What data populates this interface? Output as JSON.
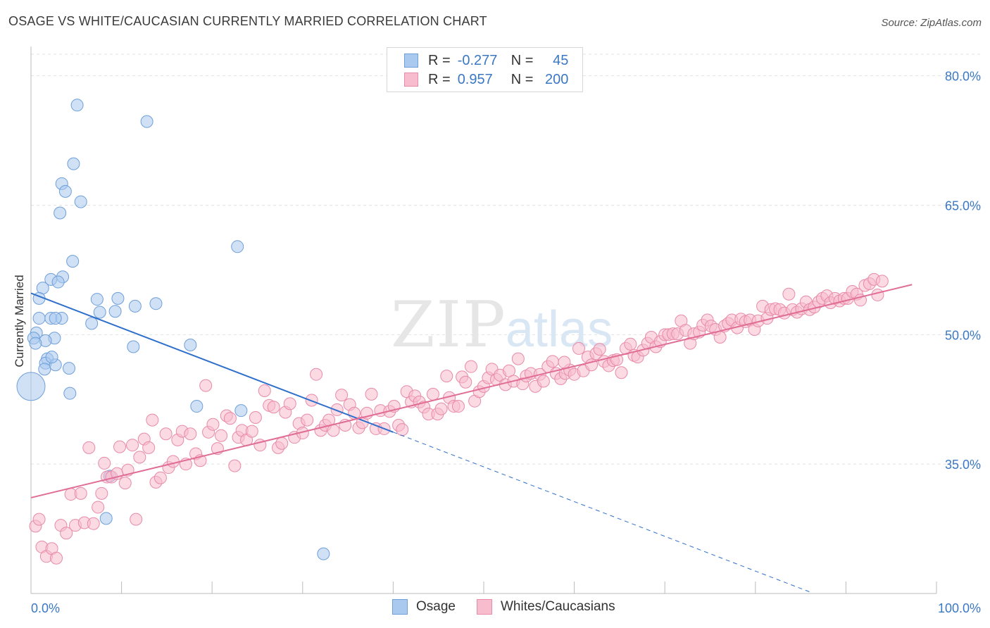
{
  "title": "OSAGE VS WHITE/CAUCASIAN CURRENTLY MARRIED CORRELATION CHART",
  "source": "Source: ZipAtlas.com",
  "watermark": {
    "zip": "ZIP",
    "atlas": "atlas"
  },
  "legend": {
    "rows": [
      {
        "r_label": "R =",
        "r_value": "-0.277",
        "n_label": "N =",
        "n_value": "45",
        "color": "#a9c9ef",
        "border": "#6e9fd8"
      },
      {
        "r_label": "R =",
        "r_value": "0.957",
        "n_label": "N =",
        "n_value": "200",
        "color": "#f7bccd",
        "border": "#e88aa8"
      }
    ]
  },
  "bottom_legend": [
    {
      "label": "Osage",
      "color": "#a9c9ef",
      "border": "#6e9fd8"
    },
    {
      "label": "Whites/Caucasians",
      "color": "#f7bccd",
      "border": "#e88aa8"
    }
  ],
  "chart_data": {
    "type": "scatter",
    "ylabel": "Currently Married",
    "xlim": [
      0,
      100
    ],
    "ylim": [
      20,
      82.5
    ],
    "x_tick_labels": [
      "0.0%",
      "100.0%"
    ],
    "y_ticks": [
      35,
      50,
      65,
      80
    ],
    "y_tick_labels": [
      "35.0%",
      "50.0%",
      "65.0%",
      "80.0%"
    ],
    "grid": true,
    "series": [
      {
        "name": "Osage",
        "color": "#a9c9ef",
        "stroke": "#6e9fd8",
        "trend": {
          "x0": 0,
          "y0": 54.8,
          "x1": 40.0,
          "y1": 38.7,
          "dash_to_x": 86,
          "color": "#2f6fcb"
        },
        "points": [
          [
            5.1,
            76.6
          ],
          [
            12.8,
            74.7
          ],
          [
            4.7,
            69.8
          ],
          [
            3.4,
            67.5
          ],
          [
            3.8,
            66.6
          ],
          [
            5.5,
            65.4
          ],
          [
            3.2,
            64.1
          ],
          [
            22.8,
            60.2
          ],
          [
            4.6,
            58.5
          ],
          [
            3.5,
            56.7
          ],
          [
            2.2,
            56.4
          ],
          [
            3.0,
            56.1
          ],
          [
            1.3,
            55.4
          ],
          [
            0.9,
            54.2
          ],
          [
            7.3,
            54.1
          ],
          [
            9.6,
            54.2
          ],
          [
            11.5,
            53.3
          ],
          [
            13.8,
            53.6
          ],
          [
            7.6,
            52.6
          ],
          [
            9.3,
            52.7
          ],
          [
            0.9,
            51.9
          ],
          [
            2.2,
            51.9
          ],
          [
            3.4,
            51.9
          ],
          [
            2.7,
            51.9
          ],
          [
            6.7,
            51.3
          ],
          [
            0.6,
            50.2
          ],
          [
            0.3,
            49.6
          ],
          [
            2.6,
            49.6
          ],
          [
            1.6,
            49.3
          ],
          [
            0.5,
            49.0
          ],
          [
            11.3,
            48.6
          ],
          [
            17.6,
            48.8
          ],
          [
            1.8,
            47.2
          ],
          [
            1.6,
            46.7
          ],
          [
            2.7,
            46.5
          ],
          [
            1.5,
            46.0
          ],
          [
            4.2,
            46.1
          ],
          [
            0.0,
            44.0
          ],
          [
            4.3,
            43.2
          ],
          [
            18.3,
            41.7
          ],
          [
            23.2,
            41.2
          ],
          [
            8.7,
            33.6
          ],
          [
            8.3,
            28.7
          ],
          [
            32.3,
            24.6
          ],
          [
            2.3,
            47.4
          ]
        ],
        "big_point_index": 37
      },
      {
        "name": "Whites/Caucasians",
        "color": "#f7bccd",
        "stroke": "#e88aa8",
        "trend": {
          "x0": 0,
          "y0": 31.1,
          "x1": 97.3,
          "y1": 55.8,
          "color": "#e06d96"
        },
        "points": [
          [
            0.5,
            27.8
          ],
          [
            0.9,
            28.6
          ],
          [
            1.2,
            25.4
          ],
          [
            1.7,
            24.3
          ],
          [
            2.3,
            25.2
          ],
          [
            2.8,
            24.1
          ],
          [
            3.3,
            27.9
          ],
          [
            3.9,
            27.0
          ],
          [
            4.4,
            31.5
          ],
          [
            4.9,
            27.9
          ],
          [
            5.5,
            31.6
          ],
          [
            5.9,
            28.2
          ],
          [
            6.4,
            36.9
          ],
          [
            6.9,
            28.1
          ],
          [
            7.4,
            30.0
          ],
          [
            7.8,
            31.6
          ],
          [
            8.1,
            35.1
          ],
          [
            8.4,
            33.5
          ],
          [
            8.9,
            33.5
          ],
          [
            9.5,
            33.9
          ],
          [
            9.8,
            37.0
          ],
          [
            10.4,
            32.8
          ],
          [
            10.7,
            34.3
          ],
          [
            11.2,
            37.2
          ],
          [
            11.6,
            28.6
          ],
          [
            12.0,
            35.8
          ],
          [
            12.5,
            37.9
          ],
          [
            13.0,
            36.9
          ],
          [
            13.4,
            40.1
          ],
          [
            13.8,
            32.9
          ],
          [
            14.3,
            33.4
          ],
          [
            14.9,
            38.5
          ],
          [
            15.2,
            34.6
          ],
          [
            15.7,
            35.3
          ],
          [
            16.2,
            37.8
          ],
          [
            16.7,
            38.8
          ],
          [
            17.1,
            35.0
          ],
          [
            17.6,
            38.5
          ],
          [
            18.2,
            36.2
          ],
          [
            18.7,
            35.4
          ],
          [
            19.3,
            44.1
          ],
          [
            19.6,
            38.7
          ],
          [
            20.1,
            39.6
          ],
          [
            20.6,
            36.8
          ],
          [
            21.0,
            38.3
          ],
          [
            21.6,
            40.6
          ],
          [
            22.0,
            40.3
          ],
          [
            22.5,
            34.8
          ],
          [
            22.9,
            38.1
          ],
          [
            23.3,
            38.9
          ],
          [
            23.8,
            37.8
          ],
          [
            24.4,
            38.8
          ],
          [
            24.8,
            40.4
          ],
          [
            25.3,
            37.2
          ],
          [
            25.8,
            43.5
          ],
          [
            26.3,
            41.8
          ],
          [
            26.8,
            41.6
          ],
          [
            27.3,
            36.9
          ],
          [
            27.7,
            37.4
          ],
          [
            28.1,
            41.0
          ],
          [
            28.6,
            42.0
          ],
          [
            29.1,
            38.1
          ],
          [
            29.6,
            39.7
          ],
          [
            30.0,
            38.6
          ],
          [
            30.5,
            40.1
          ],
          [
            31.0,
            42.4
          ],
          [
            31.5,
            45.4
          ],
          [
            32.0,
            38.9
          ],
          [
            32.5,
            39.5
          ],
          [
            32.9,
            40.1
          ],
          [
            33.4,
            38.9
          ],
          [
            33.8,
            41.3
          ],
          [
            34.3,
            43.0
          ],
          [
            34.7,
            39.5
          ],
          [
            35.2,
            41.9
          ],
          [
            35.7,
            40.9
          ],
          [
            36.2,
            39.2
          ],
          [
            36.6,
            39.8
          ],
          [
            37.1,
            40.9
          ],
          [
            37.6,
            43.1
          ],
          [
            38.1,
            39.1
          ],
          [
            38.6,
            41.2
          ],
          [
            39.0,
            39.1
          ],
          [
            39.6,
            41.1
          ],
          [
            40.1,
            41.7
          ],
          [
            40.6,
            39.5
          ],
          [
            41.0,
            39.0
          ],
          [
            41.5,
            43.4
          ],
          [
            42.0,
            42.2
          ],
          [
            42.4,
            42.9
          ],
          [
            42.9,
            42.2
          ],
          [
            43.4,
            41.6
          ],
          [
            43.9,
            40.8
          ],
          [
            44.4,
            43.1
          ],
          [
            44.9,
            40.8
          ],
          [
            45.3,
            41.4
          ],
          [
            45.9,
            45.2
          ],
          [
            46.2,
            42.7
          ],
          [
            46.7,
            41.7
          ],
          [
            47.2,
            41.7
          ],
          [
            47.6,
            45.1
          ],
          [
            48.0,
            44.5
          ],
          [
            48.6,
            46.3
          ],
          [
            49.0,
            42.3
          ],
          [
            49.5,
            43.4
          ],
          [
            50.0,
            44.0
          ],
          [
            50.5,
            45.0
          ],
          [
            50.9,
            46.0
          ],
          [
            51.4,
            44.8
          ],
          [
            51.8,
            45.3
          ],
          [
            52.4,
            44.2
          ],
          [
            52.8,
            45.8
          ],
          [
            53.3,
            44.6
          ],
          [
            53.8,
            47.2
          ],
          [
            54.3,
            44.3
          ],
          [
            54.7,
            45.2
          ],
          [
            55.2,
            45.5
          ],
          [
            55.7,
            44.0
          ],
          [
            56.2,
            45.4
          ],
          [
            56.6,
            44.6
          ],
          [
            57.1,
            46.3
          ],
          [
            57.6,
            46.9
          ],
          [
            58.0,
            45.5
          ],
          [
            58.5,
            44.9
          ],
          [
            59.0,
            45.5
          ],
          [
            59.5,
            45.9
          ],
          [
            60.0,
            45.4
          ],
          [
            60.5,
            48.4
          ],
          [
            61.0,
            45.8
          ],
          [
            61.5,
            47.4
          ],
          [
            61.9,
            46.5
          ],
          [
            62.4,
            47.8
          ],
          [
            62.8,
            48.3
          ],
          [
            63.3,
            46.9
          ],
          [
            63.8,
            46.4
          ],
          [
            64.3,
            47.0
          ],
          [
            64.7,
            47.1
          ],
          [
            65.2,
            45.6
          ],
          [
            65.7,
            48.4
          ],
          [
            66.2,
            48.9
          ],
          [
            66.6,
            47.6
          ],
          [
            67.0,
            47.4
          ],
          [
            67.6,
            48.2
          ],
          [
            68.1,
            49.0
          ],
          [
            68.5,
            49.7
          ],
          [
            69.0,
            48.6
          ],
          [
            69.5,
            49.2
          ],
          [
            70.0,
            50.0
          ],
          [
            70.4,
            50.0
          ],
          [
            70.9,
            50.1
          ],
          [
            71.4,
            50.1
          ],
          [
            71.8,
            51.6
          ],
          [
            72.3,
            50.5
          ],
          [
            72.8,
            49.0
          ],
          [
            73.2,
            50.1
          ],
          [
            73.8,
            50.3
          ],
          [
            74.2,
            51.1
          ],
          [
            74.7,
            51.7
          ],
          [
            75.1,
            51.0
          ],
          [
            75.6,
            50.6
          ],
          [
            76.1,
            49.7
          ],
          [
            76.6,
            51.0
          ],
          [
            77.0,
            51.3
          ],
          [
            77.4,
            51.7
          ],
          [
            78.0,
            50.8
          ],
          [
            78.4,
            51.8
          ],
          [
            78.9,
            51.5
          ],
          [
            79.4,
            51.7
          ],
          [
            79.9,
            50.6
          ],
          [
            80.3,
            51.6
          ],
          [
            80.8,
            53.3
          ],
          [
            81.3,
            51.9
          ],
          [
            81.7,
            52.9
          ],
          [
            82.2,
            53.0
          ],
          [
            82.7,
            52.9
          ],
          [
            83.2,
            52.5
          ],
          [
            83.7,
            54.7
          ],
          [
            84.1,
            52.9
          ],
          [
            84.6,
            52.6
          ],
          [
            85.1,
            53.0
          ],
          [
            85.6,
            53.8
          ],
          [
            86.0,
            52.9
          ],
          [
            86.5,
            53.2
          ],
          [
            87.0,
            53.8
          ],
          [
            87.4,
            54.2
          ],
          [
            87.9,
            54.5
          ],
          [
            88.3,
            53.7
          ],
          [
            88.8,
            54.2
          ],
          [
            89.3,
            53.9
          ],
          [
            89.8,
            54.2
          ],
          [
            90.2,
            54.2
          ],
          [
            90.7,
            55.0
          ],
          [
            91.2,
            54.7
          ],
          [
            91.6,
            54.0
          ],
          [
            92.1,
            55.7
          ],
          [
            92.6,
            55.9
          ],
          [
            93.1,
            56.4
          ],
          [
            93.5,
            54.6
          ],
          [
            94.0,
            56.2
          ],
          [
            58.9,
            46.8
          ]
        ]
      }
    ]
  }
}
